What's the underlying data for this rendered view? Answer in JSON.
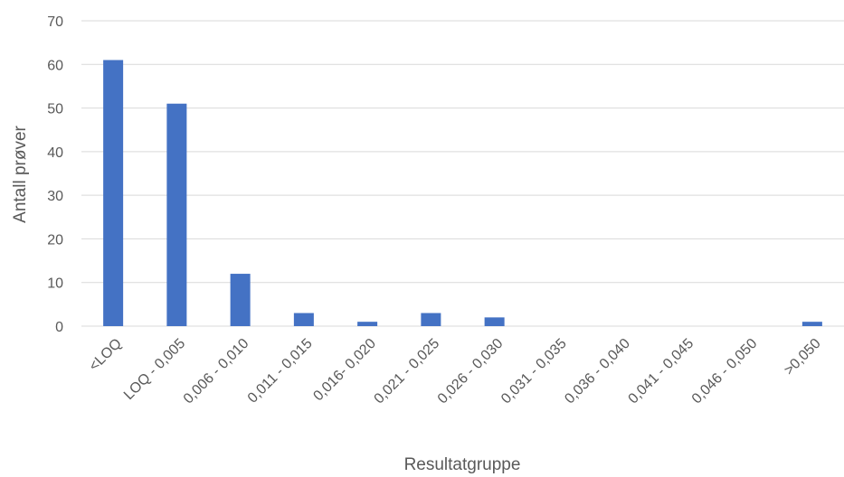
{
  "chart_data": {
    "type": "bar",
    "title": "",
    "xlabel": "Resultatgruppe",
    "ylabel": "Antall prøver",
    "ylim": [
      0,
      70
    ],
    "yticks": [
      0,
      10,
      20,
      30,
      40,
      50,
      60,
      70
    ],
    "grid": true,
    "legend": "none",
    "bar_color": "#4472c4",
    "categories": [
      "<LOQ",
      "LOQ - 0,005",
      "0,006 - 0,010",
      "0,011 - 0,015",
      "0,016- 0,020",
      "0,021 - 0,025",
      "0,026 - 0,030",
      "0,031 - 0,035",
      "0,036 - 0,040",
      "0,041 - 0,045",
      "0,046 - 0,050",
      ">0,050"
    ],
    "values": [
      61,
      51,
      12,
      3,
      1,
      3,
      2,
      0,
      0,
      0,
      0,
      1
    ]
  }
}
